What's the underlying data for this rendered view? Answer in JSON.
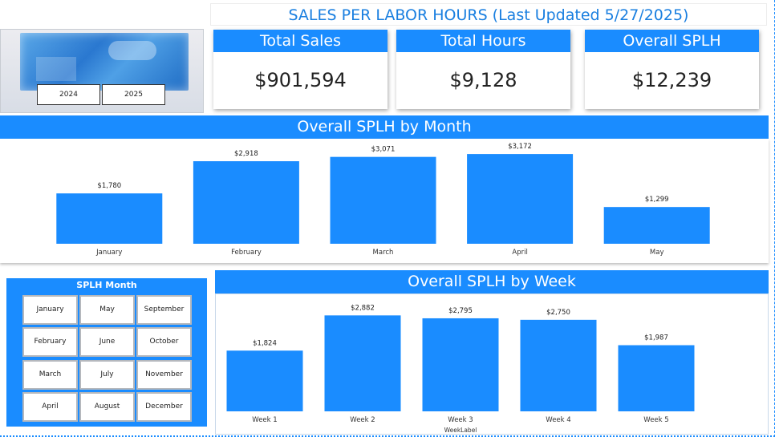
{
  "title": "SALES PER LABOR HOURS (Last Updated 5/27/2025)",
  "year_slicer": {
    "options": [
      "2024",
      "2025"
    ]
  },
  "kpis": [
    {
      "label": "Total Sales",
      "value": "$901,594"
    },
    {
      "label": "Total Hours",
      "value": "$9,128"
    },
    {
      "label": "Overall SPLH",
      "value": "$12,239"
    }
  ],
  "month_slicer": {
    "title": "SPLH Month",
    "options": [
      "January",
      "May",
      "September",
      "February",
      "June",
      "October",
      "March",
      "July",
      "November",
      "April",
      "August",
      "December"
    ]
  },
  "colors": {
    "accent": "#1a8cff",
    "title_text": "#1a7fe0"
  },
  "chart_data": [
    {
      "type": "bar",
      "title": "Overall SPLH by Month",
      "categories": [
        "January",
        "February",
        "March",
        "April",
        "May"
      ],
      "values": [
        1780,
        2918,
        3071,
        3172,
        1299
      ],
      "labels": [
        "$1,780",
        "$2,918",
        "$3,071",
        "$3,172",
        "$1,299"
      ],
      "xlabel": "",
      "ylabel": "",
      "ylim": [
        0,
        3600
      ],
      "grid": false
    },
    {
      "type": "bar",
      "title": "Overall SPLH by Week",
      "categories": [
        "Week 1",
        "Week 2",
        "Week 3",
        "Week 4",
        "Week 5"
      ],
      "values": [
        1824,
        2882,
        2795,
        2750,
        1987
      ],
      "labels": [
        "$1,824",
        "$2,882",
        "$2,795",
        "$2,750",
        "$1,987"
      ],
      "xlabel": "WeekLabel",
      "ylabel": "",
      "ylim": [
        0,
        3300
      ],
      "grid": false
    }
  ]
}
